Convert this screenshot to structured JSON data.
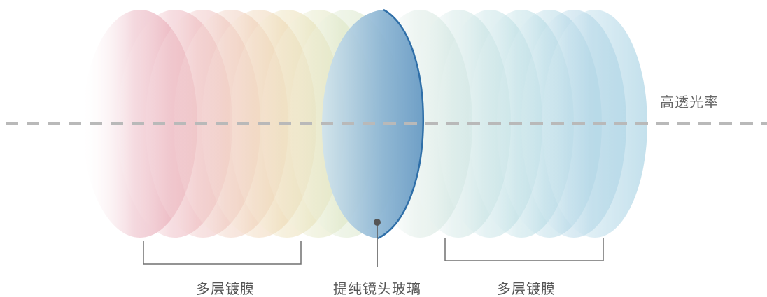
{
  "labels": {
    "transmittance": "高透光率",
    "left_coating": "多层镀膜",
    "center_glass": "提纯镜头玻璃",
    "right_coating": "多层镀膜"
  },
  "colors": {
    "axis": "#b9b9b9",
    "bracket": "#707070",
    "glass_edge": "#2f6fa8",
    "glass_fill": "#8cb5d3",
    "pointer": "#555555",
    "left_layers": [
      "#e7a9b6",
      "#edb7bf",
      "#efc4c3",
      "#f0cfbf",
      "#f0d6b7",
      "#ece0b8",
      "#e4e7c3",
      "#dbe8cc"
    ],
    "right_layers": [
      "#d9e9e2",
      "#cfe6e4",
      "#c6e3e6",
      "#bddfe5",
      "#b6dae6",
      "#b2d5e6",
      "#b9dbe9"
    ]
  }
}
